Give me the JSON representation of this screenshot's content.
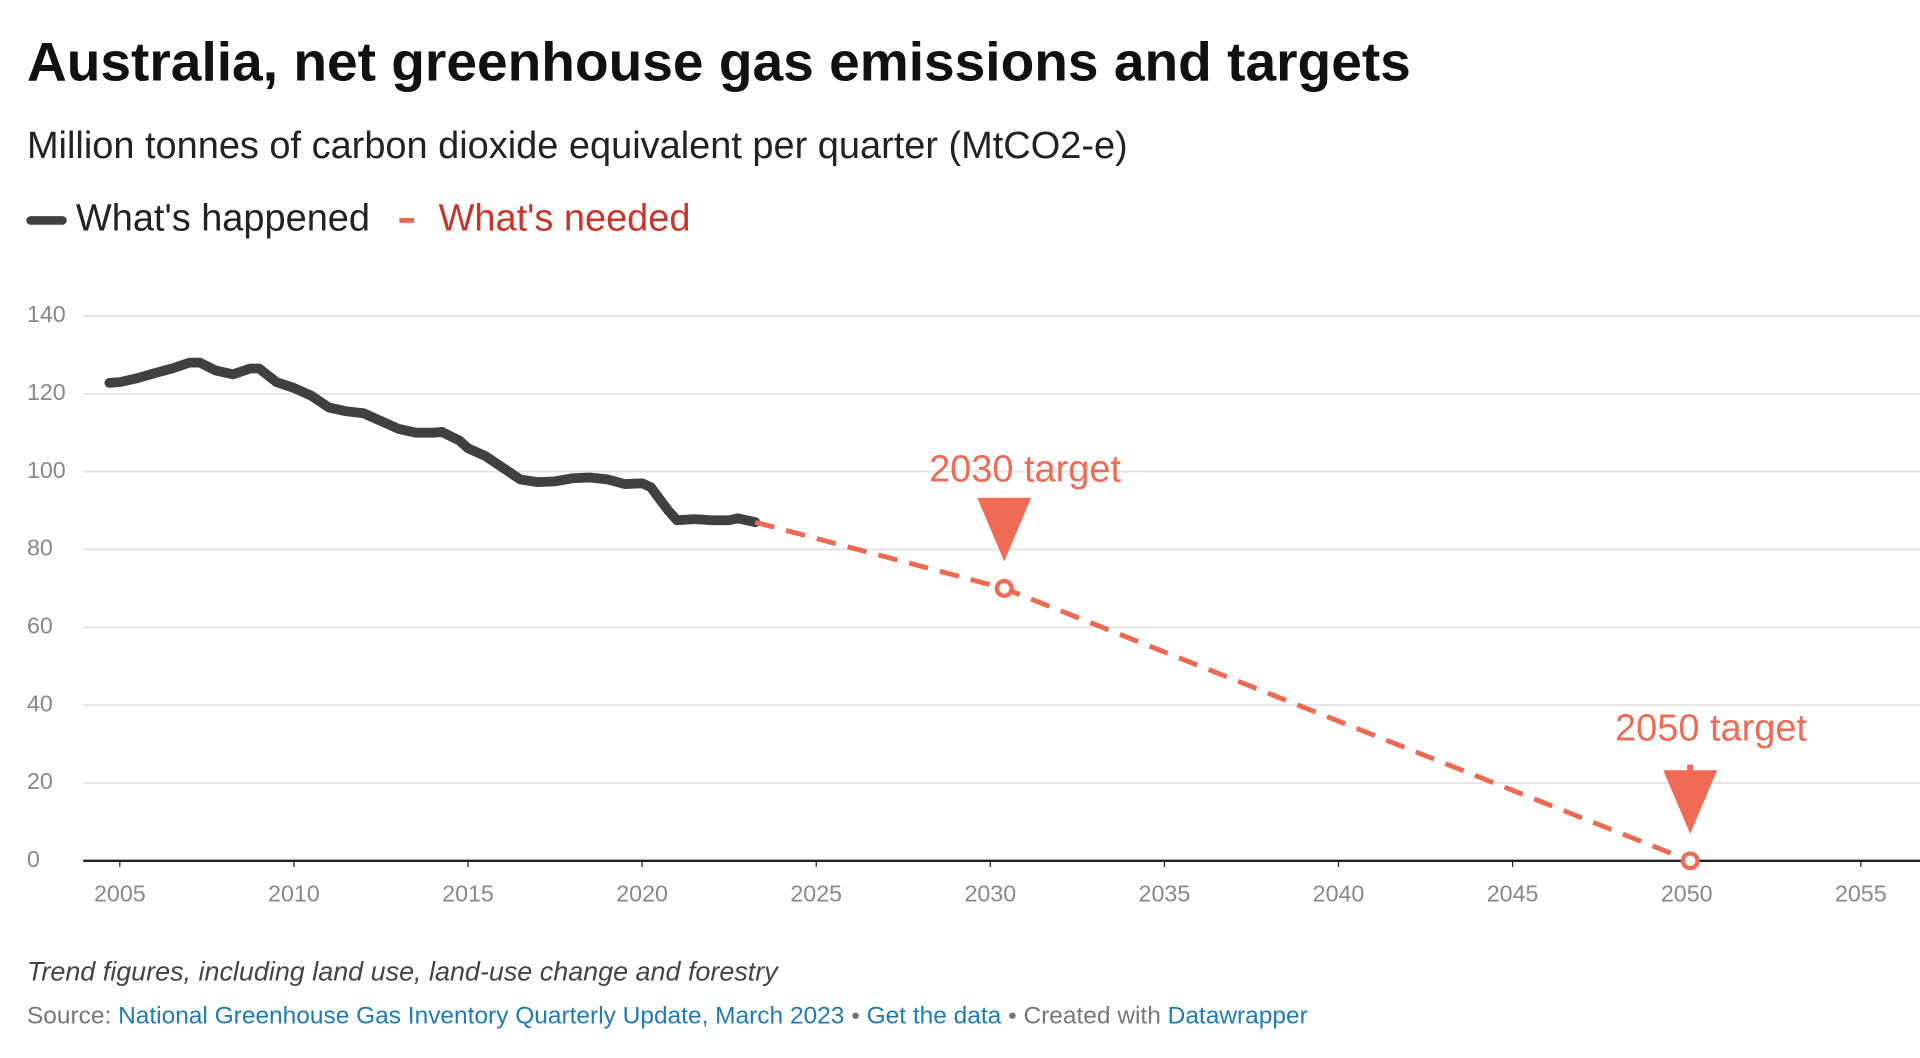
{
  "chart_data": {
    "type": "line",
    "title": "Australia, net greenhouse gas emissions and targets",
    "subtitle": "Million tonnes of carbon dioxide equivalent per quarter (MtCO2-e)",
    "series": [
      {
        "name": "What's happened",
        "color": "#404040",
        "dashed": false,
        "x": [
          2004.7,
          2005.0,
          2005.5,
          2006.0,
          2006.5,
          2007.0,
          2007.3,
          2007.75,
          2008.25,
          2008.75,
          2009.0,
          2009.5,
          2010.0,
          2010.5,
          2011.0,
          2011.5,
          2012.0,
          2012.5,
          2013.0,
          2013.5,
          2014.0,
          2014.25,
          2014.75,
          2015.0,
          2015.5,
          2016.0,
          2016.5,
          2017.0,
          2017.5,
          2018.0,
          2018.5,
          2019.0,
          2019.5,
          2020.0,
          2020.25,
          2020.75,
          2021.0,
          2021.5,
          2022.0,
          2022.5,
          2022.75,
          2023.25
        ],
        "values": [
          122.8,
          123,
          124,
          125.3,
          126.5,
          128,
          128,
          126,
          125,
          126.5,
          126.5,
          123,
          121.5,
          119.5,
          116.5,
          115.5,
          115,
          113,
          111,
          110,
          110,
          110.2,
          108,
          106,
          104,
          101,
          98,
          97.3,
          97.5,
          98.3,
          98.5,
          98,
          96.8,
          97,
          96,
          90,
          87.5,
          87.8,
          87.5,
          87.5,
          88,
          87
        ]
      },
      {
        "name": "What's needed",
        "color": "#ec6a52",
        "label_color": "#c8352a",
        "dashed": true,
        "x": [
          2023.25,
          2030.4,
          2050.1
        ],
        "values": [
          87,
          70,
          0
        ]
      }
    ],
    "annotations": [
      {
        "label": "2030 target",
        "x": 2030.4,
        "y": 70,
        "label_y": 100
      },
      {
        "label": "2050 target",
        "x": 2050.1,
        "y": 0,
        "label_y": 33.5
      }
    ],
    "annotation_color": "#f06b55",
    "xlim": [
      2003.95,
      2056.7
    ],
    "xticks": [
      2005,
      2010,
      2015,
      2020,
      2025,
      2030,
      2035,
      2040,
      2045,
      2050,
      2055
    ],
    "ylim": [
      0,
      140
    ],
    "yticks": [
      0,
      20,
      40,
      60,
      80,
      100,
      120,
      140
    ],
    "grid": true,
    "legend": "top-left",
    "note": "Trend figures, including land use, land-use change and forestry",
    "source_label": "Source:",
    "source": "National Greenhouse Gas Inventory Quarterly Update, March 2023",
    "separator": "•",
    "get_data": "Get the data",
    "credit": "Created with",
    "credit_link": "Datawrapper"
  }
}
